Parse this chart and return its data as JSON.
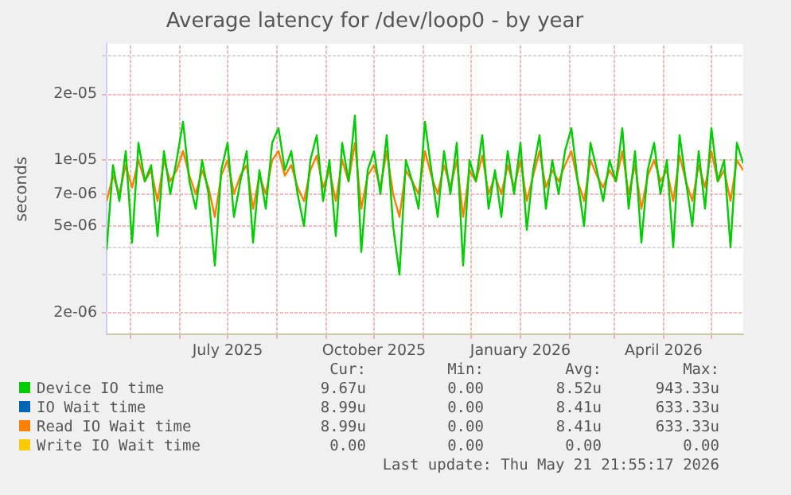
{
  "chart_data": {
    "type": "line",
    "title": "Average latency for /dev/loop0 - by year",
    "ylabel": "seconds",
    "log": "y",
    "grid": true,
    "legend": "bottom",
    "marker": "none",
    "line_style": "solid",
    "x": [
      "2025-04-16",
      "2025-04-20",
      "2025-04-24",
      "2025-04-28",
      "2025-05-02",
      "2025-05-06",
      "2025-05-10",
      "2025-05-14",
      "2025-05-18",
      "2025-05-22",
      "2025-05-26",
      "2025-05-30",
      "2025-06-03",
      "2025-06-07",
      "2025-06-11",
      "2025-06-15",
      "2025-06-19",
      "2025-06-23",
      "2025-06-27",
      "2025-07-01",
      "2025-07-05",
      "2025-07-09",
      "2025-07-13",
      "2025-07-17",
      "2025-07-21",
      "2025-07-25",
      "2025-07-29",
      "2025-08-02",
      "2025-08-06",
      "2025-08-10",
      "2025-08-14",
      "2025-08-18",
      "2025-08-22",
      "2025-08-26",
      "2025-08-30",
      "2025-09-03",
      "2025-09-07",
      "2025-09-11",
      "2025-09-15",
      "2025-09-19",
      "2025-09-23",
      "2025-09-27",
      "2025-10-01",
      "2025-10-05",
      "2025-10-09",
      "2025-10-13",
      "2025-10-17",
      "2025-10-21",
      "2025-10-25",
      "2025-10-29",
      "2025-11-02",
      "2025-11-06",
      "2025-11-10",
      "2025-11-14",
      "2025-11-18",
      "2025-11-22",
      "2025-11-26",
      "2025-11-30",
      "2025-12-04",
      "2025-12-08",
      "2025-12-12",
      "2025-12-16",
      "2025-12-20",
      "2025-12-24",
      "2025-12-28",
      "2026-01-01",
      "2026-01-05",
      "2026-01-09",
      "2026-01-13",
      "2026-01-17",
      "2026-01-21",
      "2026-01-25",
      "2026-01-29",
      "2026-02-02",
      "2026-02-06",
      "2026-02-10",
      "2026-02-14",
      "2026-02-18",
      "2026-02-22",
      "2026-02-26",
      "2026-03-02",
      "2026-03-06",
      "2026-03-10",
      "2026-03-14",
      "2026-03-18",
      "2026-03-22",
      "2026-03-26",
      "2026-03-30",
      "2026-04-03",
      "2026-04-07",
      "2026-04-11",
      "2026-04-15",
      "2026-04-19",
      "2026-04-23",
      "2026-04-27",
      "2026-05-01",
      "2026-05-05",
      "2026-05-09",
      "2026-05-13",
      "2026-05-17",
      "2026-05-21"
    ],
    "xlim": [
      "2025-04-16",
      "2026-05-21"
    ],
    "xticks": [
      {
        "value": "2025-05-01",
        "label": null
      },
      {
        "value": "2025-06-01",
        "label": null
      },
      {
        "value": "2025-07-01",
        "label": "July 2025"
      },
      {
        "value": "2025-08-01",
        "label": null
      },
      {
        "value": "2025-09-01",
        "label": null
      },
      {
        "value": "2025-10-01",
        "label": "October 2025"
      },
      {
        "value": "2025-11-01",
        "label": null
      },
      {
        "value": "2025-12-01",
        "label": null
      },
      {
        "value": "2026-01-01",
        "label": "January 2026"
      },
      {
        "value": "2026-02-01",
        "label": null
      },
      {
        "value": "2026-03-01",
        "label": null
      },
      {
        "value": "2026-04-01",
        "label": "April 2026"
      },
      {
        "value": "2026-05-01",
        "label": null
      }
    ],
    "ylim": [
      1.6e-06,
      3.4e-05
    ],
    "yticks": [
      {
        "value": 2e-06,
        "label": "2e-06"
      },
      {
        "value": 3e-06,
        "label": null
      },
      {
        "value": 4e-06,
        "label": null
      },
      {
        "value": 5e-06,
        "label": "5e-06"
      },
      {
        "value": 7e-06,
        "label": "7e-06"
      },
      {
        "value": 1e-05,
        "label": "1e-05"
      },
      {
        "value": 2e-05,
        "label": "2e-05"
      },
      {
        "value": 3e-05,
        "label": null
      }
    ],
    "series": [
      {
        "name": "Device IO time",
        "color": "#00cc00",
        "values": [
          3.9e-06,
          9.5e-06,
          6.5e-06,
          1.1e-05,
          4.2e-06,
          1.2e-05,
          8e-06,
          9.5e-06,
          4.5e-06,
          1.1e-05,
          7e-06,
          1e-05,
          1.5e-05,
          8e-06,
          6e-06,
          1e-05,
          7e-06,
          3.3e-06,
          9e-06,
          1.2e-05,
          5.5e-06,
          8e-06,
          1.1e-05,
          4.2e-06,
          9e-06,
          6e-06,
          1.2e-05,
          1.4e-05,
          9e-06,
          1.1e-05,
          7e-06,
          5e-06,
          1e-05,
          1.3e-05,
          6.5e-06,
          1e-05,
          4.5e-06,
          1.2e-05,
          8e-06,
          1.6e-05,
          3.8e-06,
          9e-06,
          1.1e-05,
          7e-06,
          1.3e-05,
          5e-06,
          3e-06,
          1e-05,
          8e-06,
          6e-06,
          1.5e-05,
          9e-06,
          5.5e-06,
          1.1e-05,
          7e-06,
          1.2e-05,
          3.3e-06,
          1e-05,
          8e-06,
          1.3e-05,
          6e-06,
          9e-06,
          5.5e-06,
          1.1e-05,
          7e-06,
          1.2e-05,
          4.8e-06,
          9e-06,
          1.3e-05,
          6e-06,
          1e-05,
          7e-06,
          1.1e-05,
          1.4e-05,
          8e-06,
          5e-06,
          1.2e-05,
          9e-06,
          6.5e-06,
          1e-05,
          8e-06,
          1.4e-05,
          6e-06,
          1.1e-05,
          4.2e-06,
          9e-06,
          1.2e-05,
          7e-06,
          1e-05,
          4e-06,
          1.3e-05,
          8e-06,
          5e-06,
          1.1e-05,
          6e-06,
          1.4e-05,
          8e-06,
          1e-05,
          4e-06,
          1.2e-05,
          9.67e-06
        ]
      },
      {
        "name": "IO Wait time",
        "color": "#0066b3",
        "values": [
          null,
          null,
          null,
          null,
          null,
          null,
          null,
          null,
          null,
          null,
          null,
          null,
          null,
          null,
          null,
          null,
          null,
          null,
          null,
          null,
          null,
          null,
          null,
          null,
          null,
          null,
          null,
          null,
          null,
          null,
          null,
          null,
          null,
          null,
          null,
          null,
          null,
          null,
          null,
          null,
          null,
          null,
          null,
          null,
          null,
          null,
          null,
          null,
          null,
          null,
          null,
          null,
          null,
          null,
          null,
          null,
          null,
          null,
          null,
          null,
          null,
          null,
          null,
          null,
          null,
          null,
          null,
          null,
          null,
          null,
          null,
          null,
          null,
          null,
          null,
          null,
          null,
          null,
          null,
          null,
          null,
          null,
          null,
          null,
          null,
          null,
          null,
          null,
          null,
          null,
          null,
          null,
          null,
          null,
          null,
          null,
          null,
          null,
          null,
          null,
          null
        ]
      },
      {
        "name": "Read IO Wait time",
        "color": "#ff8000",
        "values": [
          6.5e-06,
          8.5e-06,
          7e-06,
          9.5e-06,
          7.5e-06,
          1e-05,
          8e-06,
          9e-06,
          6.5e-06,
          1e-05,
          8e-06,
          9e-06,
          1.1e-05,
          8.5e-06,
          7e-06,
          9e-06,
          7.5e-06,
          5.5e-06,
          8.5e-06,
          1e-05,
          7e-06,
          8.5e-06,
          9.5e-06,
          6e-06,
          8.5e-06,
          7e-06,
          1e-05,
          1.1e-05,
          8.5e-06,
          9.5e-06,
          7.5e-06,
          6.5e-06,
          9e-06,
          1.05e-05,
          7.5e-06,
          9e-06,
          6.5e-06,
          1e-05,
          8e-06,
          1.2e-05,
          6e-06,
          8.5e-06,
          9.5e-06,
          7.5e-06,
          1.1e-05,
          7e-06,
          5.5e-06,
          9e-06,
          8e-06,
          7e-06,
          1.1e-05,
          8.5e-06,
          7e-06,
          9.5e-06,
          7.5e-06,
          1e-05,
          5.5e-06,
          9e-06,
          8e-06,
          1.05e-05,
          7e-06,
          8.5e-06,
          7e-06,
          9.5e-06,
          7.5e-06,
          1e-05,
          6.5e-06,
          8.5e-06,
          1.1e-05,
          7.5e-06,
          9e-06,
          8e-06,
          9.5e-06,
          1.1e-05,
          8e-06,
          6.5e-06,
          1e-05,
          8.5e-06,
          7.5e-06,
          9e-06,
          8e-06,
          1.1e-05,
          7e-06,
          9.5e-06,
          6e-06,
          8.5e-06,
          1e-05,
          8e-06,
          9e-06,
          6.5e-06,
          1.05e-05,
          8e-06,
          6.5e-06,
          9.5e-06,
          7.5e-06,
          1.1e-05,
          8e-06,
          9e-06,
          6.5e-06,
          1e-05,
          8.99e-06
        ]
      },
      {
        "name": "Write IO Wait time",
        "color": "#ffcc00",
        "values": [
          null,
          null,
          null,
          null,
          null,
          null,
          null,
          null,
          null,
          null,
          null,
          null,
          null,
          null,
          null,
          null,
          null,
          null,
          null,
          null,
          null,
          null,
          null,
          null,
          null,
          null,
          null,
          null,
          null,
          null,
          null,
          null,
          null,
          null,
          null,
          null,
          null,
          null,
          null,
          null,
          null,
          null,
          null,
          null,
          null,
          null,
          null,
          null,
          null,
          null,
          null,
          null,
          null,
          null,
          null,
          null,
          null,
          null,
          null,
          null,
          null,
          null,
          null,
          null,
          null,
          null,
          null,
          null,
          null,
          null,
          null,
          null,
          null,
          null,
          null,
          null,
          null,
          null,
          null,
          null,
          null,
          null,
          null,
          null,
          null,
          null,
          null,
          null,
          null,
          null,
          null,
          null,
          null,
          null,
          null,
          null,
          null,
          null,
          null,
          null,
          null
        ]
      }
    ],
    "annotations": [
      "Cur:",
      "Min:",
      "Avg:",
      "Max:",
      "9.67u",
      "0.00",
      "8.52u",
      "943.33u",
      "8.99u",
      "0.00",
      "8.41u",
      "633.33u",
      "8.99u",
      "0.00",
      "8.41u",
      "633.33u",
      "0.00",
      "0.00",
      "0.00",
      "0.00",
      "Last update: Thu May 21 21:55:17 2026"
    ]
  }
}
